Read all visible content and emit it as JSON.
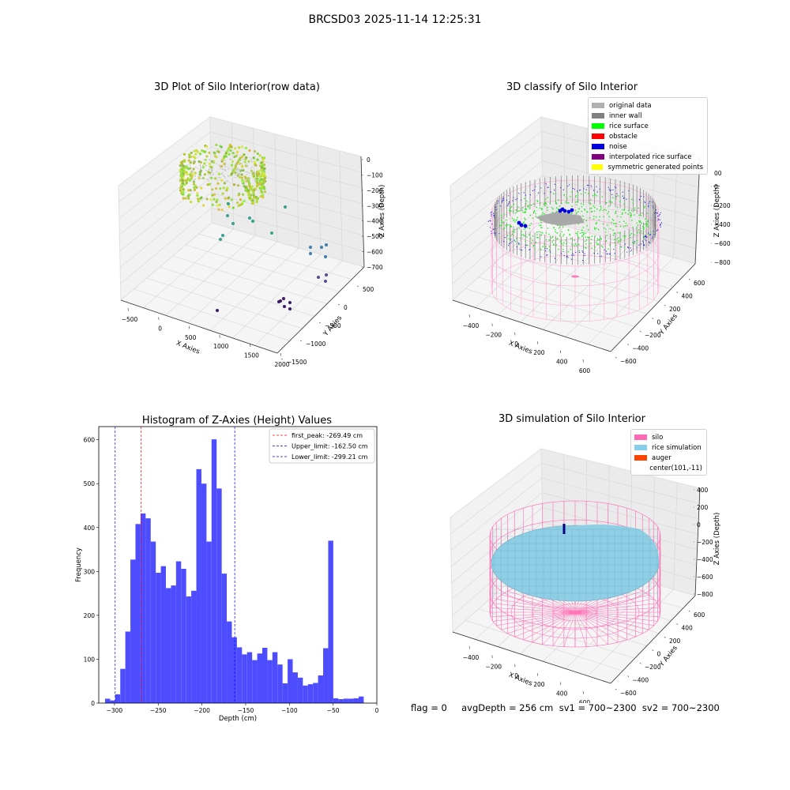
{
  "main_title": "BRCSD03 2025-11-14 12:25:31",
  "panels": {
    "p1": {
      "title": "3D Plot of Silo Interior(row data)",
      "x_label": "X Axies",
      "y_label": "Y Axies",
      "z_label": "Z Axies (Depth)",
      "x_ticks": [
        "−500",
        "0",
        "500",
        "1000",
        "1500",
        "2000"
      ],
      "y_ticks": [
        "−1500",
        "−1000",
        "−500",
        "0",
        "500"
      ],
      "z_ticks": [
        "0",
        "−100",
        "−200",
        "−300",
        "−400",
        "−500",
        "−600",
        "−700"
      ]
    },
    "p2": {
      "title": "3D classify of Silo Interior",
      "x_label": "X Axies",
      "y_label": "Y Axies",
      "z_label": "Z Axies (Depth)",
      "x_ticks": [
        "−400",
        "−200",
        "0",
        "200",
        "400",
        "600"
      ],
      "y_ticks": [
        "−600",
        "−400",
        "−200",
        "0",
        "200",
        "400",
        "600"
      ],
      "z_ticks": [
        "200",
        "0",
        "−200",
        "−400",
        "−600",
        "−800"
      ],
      "z_tick_partial": "00",
      "legend": [
        {
          "label": "original data",
          "color": "#b0b0b0"
        },
        {
          "label": "inner wall",
          "color": "#808080"
        },
        {
          "label": "rice surface",
          "color": "#00ff00"
        },
        {
          "label": "obstacle",
          "color": "#ff0000"
        },
        {
          "label": "noise",
          "color": "#0000dd"
        },
        {
          "label": "interpolated rice surface",
          "color": "#800080"
        },
        {
          "label": "symmetric generated points",
          "color": "#ffff00"
        }
      ]
    },
    "p4": {
      "title": "3D simulation of Silo Interior",
      "x_label": "X Axies",
      "y_label": "Y Axies",
      "z_label": "Z Axies (Depth)",
      "x_ticks": [
        "−400",
        "−200",
        "0",
        "200",
        "400",
        "600"
      ],
      "y_ticks": [
        "−600",
        "−400",
        "−200",
        "0",
        "200",
        "400",
        "600"
      ],
      "z_ticks": [
        "400",
        "200",
        "0",
        "−200",
        "−400",
        "−600",
        "−800"
      ],
      "legend": [
        {
          "label": "silo",
          "color": "#ff69b4"
        },
        {
          "label": "rice simulation",
          "color": "#87ceeb"
        },
        {
          "label": "auger",
          "color": "#ff4500"
        },
        {
          "label": "center(101,-11)",
          "color": ""
        }
      ]
    }
  },
  "footer": "flag = 0     avgDepth = 256 cm  sv1 = 700~2300  sv2 = 700~2300",
  "chart_data": [
    {
      "type": "scatter",
      "title": "3D Plot of Silo Interior(row data)",
      "xlabel": "X Axies",
      "ylabel": "Y Axies",
      "zlabel": "Z Axies (Depth)",
      "xlim": [
        -600,
        2100
      ],
      "ylim": [
        -1550,
        600
      ],
      "zlim": [
        -730,
        20
      ]
    },
    {
      "type": "scatter",
      "title": "3D classify of Silo Interior",
      "xlabel": "X Axies",
      "ylabel": "Y Axies",
      "zlabel": "Z Axies (Depth)",
      "xlim": [
        -500,
        700
      ],
      "ylim": [
        -650,
        650
      ],
      "zlim": [
        -900,
        250
      ],
      "series": [
        {
          "name": "original data"
        },
        {
          "name": "inner wall"
        },
        {
          "name": "rice surface"
        },
        {
          "name": "obstacle"
        },
        {
          "name": "noise"
        },
        {
          "name": "interpolated rice surface"
        },
        {
          "name": "symmetric generated points"
        }
      ]
    },
    {
      "type": "bar",
      "title": "Histogram of Z-Axies (Height) Values",
      "xlabel": "Depth (cm)",
      "ylabel": "Frequency",
      "xlim": [
        -318,
        0
      ],
      "ylim": [
        0,
        630
      ],
      "x_ticks": [
        -300,
        -250,
        -200,
        -150,
        -100,
        -50,
        0
      ],
      "y_ticks": [
        0,
        100,
        200,
        300,
        400,
        500,
        600
      ],
      "color": "#4d4dff",
      "bins": [
        {
          "x0": -310.8,
          "x1": -305.0,
          "y": 10
        },
        {
          "x0": -305.0,
          "x1": -299.2,
          "y": 6
        },
        {
          "x0": -299.2,
          "x1": -293.4,
          "y": 20
        },
        {
          "x0": -293.4,
          "x1": -287.6,
          "y": 78
        },
        {
          "x0": -287.6,
          "x1": -281.8,
          "y": 163
        },
        {
          "x0": -281.8,
          "x1": -276.0,
          "y": 327
        },
        {
          "x0": -276.0,
          "x1": -270.2,
          "y": 408
        },
        {
          "x0": -270.2,
          "x1": -264.4,
          "y": 432
        },
        {
          "x0": -264.4,
          "x1": -258.6,
          "y": 421
        },
        {
          "x0": -258.6,
          "x1": -252.8,
          "y": 368
        },
        {
          "x0": -252.8,
          "x1": -247.0,
          "y": 297
        },
        {
          "x0": -247.0,
          "x1": -241.2,
          "y": 312
        },
        {
          "x0": -241.2,
          "x1": -235.4,
          "y": 262
        },
        {
          "x0": -235.4,
          "x1": -229.6,
          "y": 268
        },
        {
          "x0": -229.6,
          "x1": -223.8,
          "y": 323
        },
        {
          "x0": -223.8,
          "x1": -218.0,
          "y": 306
        },
        {
          "x0": -218.0,
          "x1": -212.2,
          "y": 243
        },
        {
          "x0": -212.2,
          "x1": -206.4,
          "y": 256
        },
        {
          "x0": -206.4,
          "x1": -200.6,
          "y": 533
        },
        {
          "x0": -200.6,
          "x1": -194.8,
          "y": 500
        },
        {
          "x0": -194.8,
          "x1": -189.0,
          "y": 368
        },
        {
          "x0": -189.0,
          "x1": -183.2,
          "y": 601
        },
        {
          "x0": -183.2,
          "x1": -177.4,
          "y": 489
        },
        {
          "x0": -177.4,
          "x1": -171.6,
          "y": 295
        },
        {
          "x0": -171.6,
          "x1": -165.8,
          "y": 186
        },
        {
          "x0": -165.8,
          "x1": -160.0,
          "y": 150
        },
        {
          "x0": -160.0,
          "x1": -154.2,
          "y": 127
        },
        {
          "x0": -154.2,
          "x1": -148.4,
          "y": 111
        },
        {
          "x0": -148.4,
          "x1": -142.6,
          "y": 116
        },
        {
          "x0": -142.6,
          "x1": -136.8,
          "y": 98
        },
        {
          "x0": -136.8,
          "x1": -131.0,
          "y": 113
        },
        {
          "x0": -131.0,
          "x1": -125.2,
          "y": 126
        },
        {
          "x0": -125.2,
          "x1": -119.4,
          "y": 98
        },
        {
          "x0": -119.4,
          "x1": -113.6,
          "y": 116
        },
        {
          "x0": -113.6,
          "x1": -107.8,
          "y": 88
        },
        {
          "x0": -107.8,
          "x1": -102.0,
          "y": 45
        },
        {
          "x0": -102.0,
          "x1": -96.2,
          "y": 100
        },
        {
          "x0": -96.2,
          "x1": -90.4,
          "y": 70
        },
        {
          "x0": -90.4,
          "x1": -84.6,
          "y": 58
        },
        {
          "x0": -84.6,
          "x1": -78.8,
          "y": 40
        },
        {
          "x0": -78.8,
          "x1": -73.0,
          "y": 43
        },
        {
          "x0": -73.0,
          "x1": -67.2,
          "y": 46
        },
        {
          "x0": -67.2,
          "x1": -61.4,
          "y": 63
        },
        {
          "x0": -61.4,
          "x1": -55.6,
          "y": 125
        },
        {
          "x0": -55.6,
          "x1": -49.8,
          "y": 370
        },
        {
          "x0": -49.8,
          "x1": -44.0,
          "y": 11
        },
        {
          "x0": -44.0,
          "x1": -38.2,
          "y": 9
        },
        {
          "x0": -38.2,
          "x1": -32.4,
          "y": 10
        },
        {
          "x0": -32.4,
          "x1": -26.6,
          "y": 10
        },
        {
          "x0": -26.6,
          "x1": -20.8,
          "y": 11
        },
        {
          "x0": -20.8,
          "x1": -15.0,
          "y": 15
        }
      ],
      "lines": [
        {
          "name": "first_peak: -269.49 cm",
          "x": -269.49,
          "color": "#ff0000"
        },
        {
          "name": "Upper_limit: -162.50 cm",
          "x": -162.5,
          "color": "#0000ff"
        },
        {
          "name": "Lower_limit: -299.21 cm",
          "x": -299.21,
          "color": "#0000ff"
        }
      ],
      "legend": "top-right"
    },
    {
      "type": "scatter",
      "title": "3D simulation of Silo Interior",
      "xlabel": "X Axies",
      "ylabel": "Y Axies",
      "zlabel": "Z Axies (Depth)",
      "xlim": [
        -500,
        700
      ],
      "ylim": [
        -650,
        650
      ],
      "zlim": [
        -900,
        450
      ],
      "series": [
        {
          "name": "silo"
        },
        {
          "name": "rice simulation"
        },
        {
          "name": "auger"
        },
        {
          "name": "center(101,-11)"
        }
      ]
    }
  ]
}
